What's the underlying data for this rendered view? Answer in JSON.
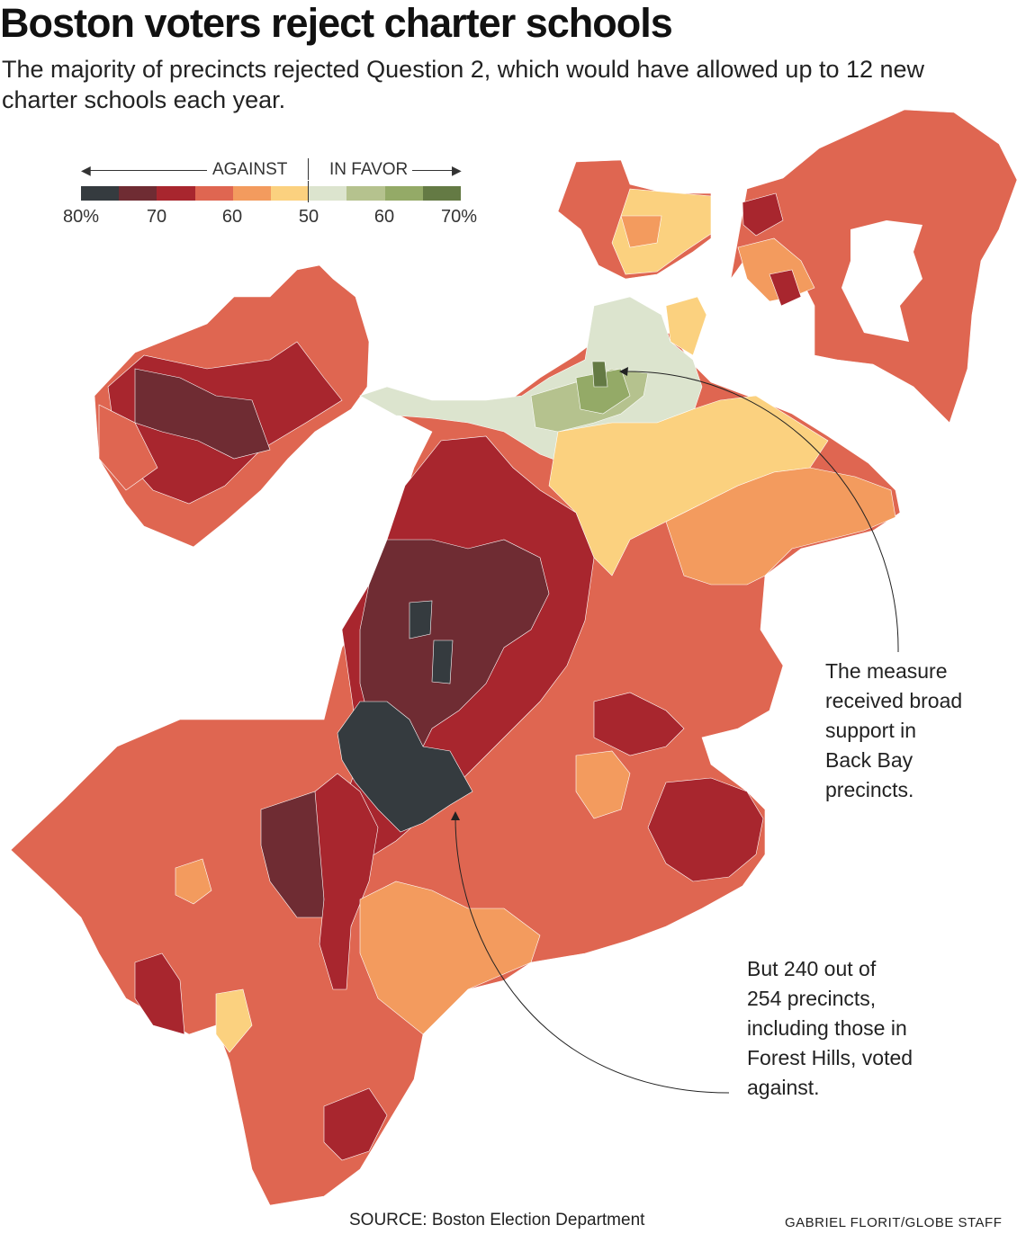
{
  "title": "Boston voters reject charter schools",
  "subtitle": "The majority of precincts rejected Question 2, which would have allowed up to 12 new charter schools each year.",
  "legend": {
    "against_label": "AGAINST",
    "favor_label": "IN FAVOR",
    "ticks": [
      "80%",
      "70",
      "60",
      "50",
      "60",
      "70%"
    ],
    "swatches": [
      "#353b3f",
      "#6f2c33",
      "#a8262e",
      "#df6651",
      "#f39b5e",
      "#fbd17f",
      "#dce4ce",
      "#b5c28e",
      "#94aa67",
      "#647a44"
    ]
  },
  "annotations": {
    "back_bay": "The measure\nreceived broad\nsupport in\nBack Bay\nprecincts.",
    "forest_hills": "But 240 out of\n254 precincts,\nincluding those in\nForest Hills, voted\nagainst."
  },
  "source": "SOURCE: Boston Election Department",
  "credit": "GABRIEL FLORIT/GLOBE STAFF",
  "colors": {
    "against_80": "#353b3f",
    "against_70": "#6f2c33",
    "against_65": "#a8262e",
    "against_60": "#df6651",
    "against_55": "#f39b5e",
    "against_50": "#fbd17f",
    "favor_50": "#dce4ce",
    "favor_55": "#b5c28e",
    "favor_60": "#94aa67",
    "favor_70": "#647a44"
  }
}
